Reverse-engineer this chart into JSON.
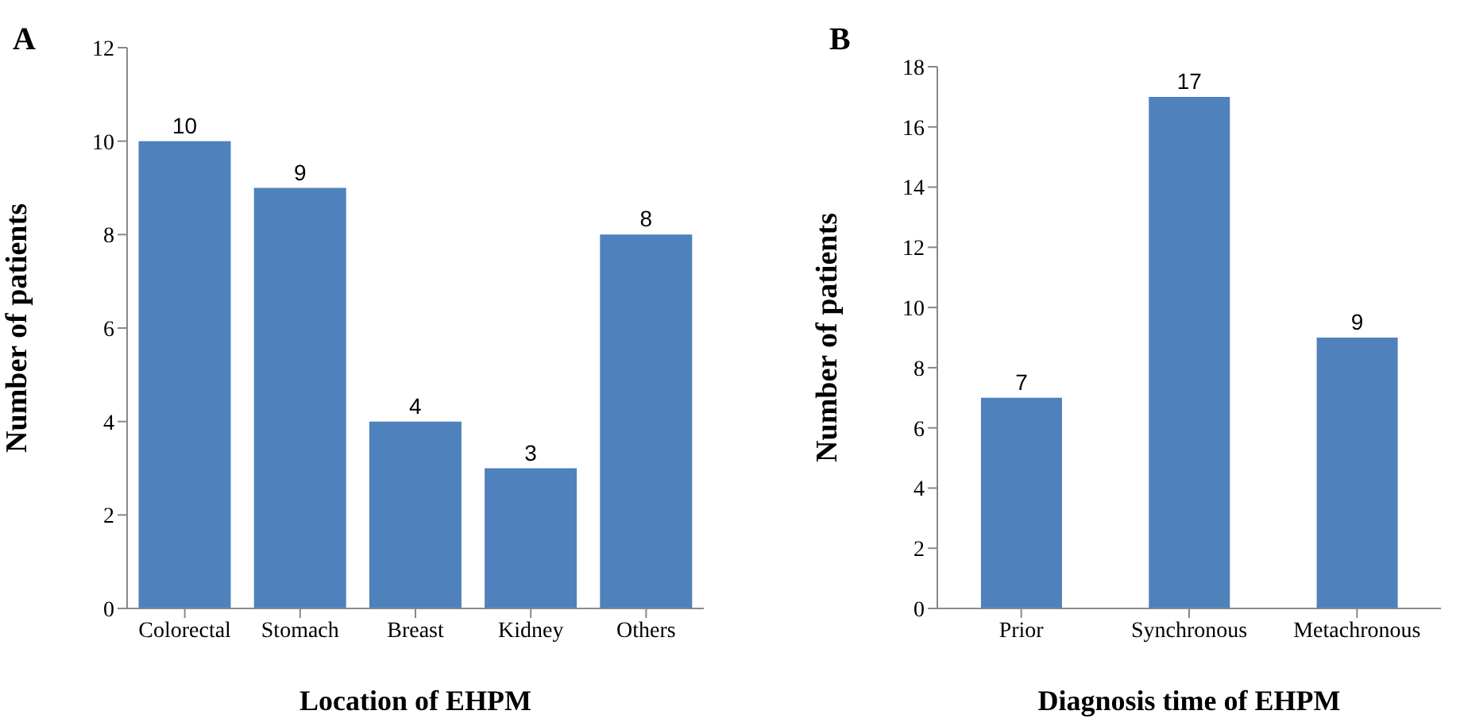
{
  "chart_data": [
    {
      "type": "bar",
      "title": "A",
      "xlabel": "Location of EHPM",
      "ylabel": "Number of patients",
      "categories": [
        "Colorectal",
        "Stomach",
        "Breast",
        "Kidney",
        "Others"
      ],
      "values": [
        10,
        9,
        4,
        3,
        8
      ],
      "color": "#4f81bd",
      "ylim": [
        0,
        12
      ],
      "yticks": [
        0,
        2,
        4,
        6,
        8,
        10,
        12
      ],
      "data_labels": true,
      "grid": false,
      "legend": false
    },
    {
      "type": "bar",
      "title": "B",
      "xlabel": "Diagnosis time of EHPM",
      "ylabel": "Number of patients",
      "categories": [
        "Prior",
        "Synchronous",
        "Metachronous"
      ],
      "values": [
        7,
        17,
        9
      ],
      "color": "#4f81bd",
      "ylim": [
        0,
        18
      ],
      "yticks": [
        0,
        2,
        4,
        6,
        8,
        10,
        12,
        14,
        16,
        18
      ],
      "data_labels": true,
      "grid": false,
      "legend": false
    }
  ]
}
